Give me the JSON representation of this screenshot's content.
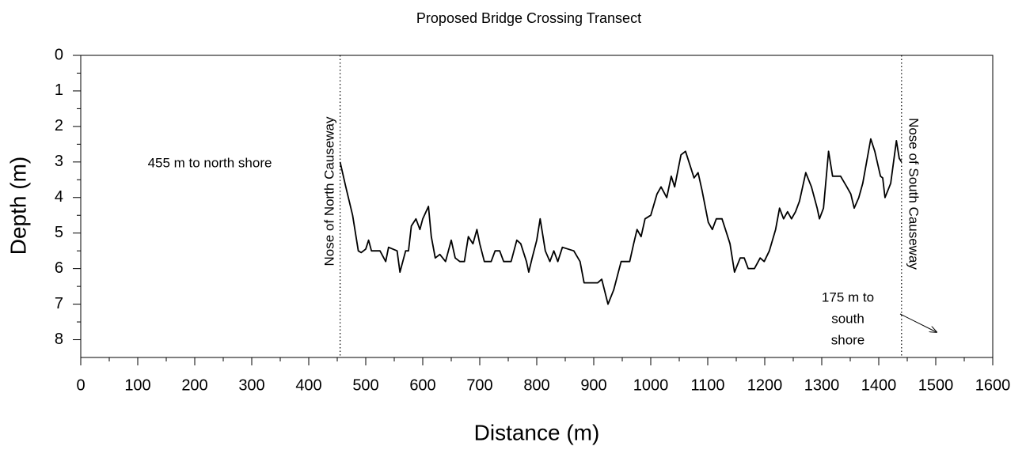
{
  "chart_data": {
    "type": "line",
    "title": "Proposed Bridge Crossing Transect",
    "xlabel": "Distance (m)",
    "ylabel": "Depth (m)",
    "xlim": [
      0,
      1600
    ],
    "ylim": [
      0,
      8.5
    ],
    "y_inverted": true,
    "xticks": [
      0,
      100,
      200,
      300,
      400,
      500,
      600,
      700,
      800,
      900,
      1000,
      1100,
      1200,
      1300,
      1400,
      1500,
      1600
    ],
    "xminorticks": [
      50,
      150,
      250,
      350,
      450,
      550,
      650,
      750,
      850,
      950,
      1050,
      1150,
      1250,
      1350,
      1450,
      1550
    ],
    "yticks": [
      0,
      1,
      2,
      3,
      4,
      5,
      6,
      7,
      8
    ],
    "yminorticks": [
      0.5,
      1.5,
      2.5,
      3.5,
      4.5,
      5.5,
      6.5,
      7.5
    ],
    "color": "#000000",
    "vlines": [
      455,
      1440
    ],
    "annotations": {
      "north_shore": "455 m to north shore",
      "north_nose": "Nose of North Causeway",
      "south_nose": "Nose of South Causeway",
      "south_shore": [
        "175 m to",
        "south",
        "shore"
      ]
    },
    "x": [
      455,
      465,
      477,
      487,
      492,
      500,
      505,
      510,
      525,
      535,
      540,
      555,
      560,
      570,
      575,
      580,
      588,
      595,
      600,
      610,
      615,
      622,
      630,
      640,
      650,
      657,
      665,
      673,
      680,
      688,
      695,
      700,
      708,
      720,
      727,
      735,
      742,
      755,
      765,
      772,
      782,
      786,
      792,
      800,
      806,
      815,
      823,
      830,
      837,
      845,
      865,
      876,
      883,
      907,
      914,
      925,
      935,
      948,
      963,
      970,
      976,
      983,
      990,
      1000,
      1011,
      1018,
      1028,
      1036,
      1042,
      1053,
      1061,
      1069,
      1076,
      1083,
      1090,
      1101,
      1108,
      1115,
      1125,
      1133,
      1139,
      1147,
      1157,
      1164,
      1171,
      1182,
      1192,
      1199,
      1208,
      1219,
      1226,
      1233,
      1240,
      1247,
      1254,
      1261,
      1272,
      1282,
      1292,
      1296,
      1303,
      1312,
      1319,
      1326,
      1333,
      1344,
      1351,
      1357,
      1365,
      1372,
      1386,
      1393,
      1403,
      1407,
      1411,
      1421,
      1431,
      1436,
      1440
    ],
    "values": [
      3.0,
      3.7,
      4.5,
      5.5,
      5.55,
      5.45,
      5.2,
      5.5,
      5.5,
      5.8,
      5.4,
      5.5,
      6.1,
      5.5,
      5.5,
      4.8,
      4.6,
      4.9,
      4.6,
      4.25,
      5.1,
      5.7,
      5.6,
      5.8,
      5.2,
      5.7,
      5.8,
      5.8,
      5.1,
      5.3,
      4.9,
      5.3,
      5.8,
      5.8,
      5.5,
      5.5,
      5.8,
      5.8,
      5.2,
      5.3,
      5.8,
      6.1,
      5.7,
      5.2,
      4.6,
      5.5,
      5.8,
      5.5,
      5.8,
      5.4,
      5.5,
      5.8,
      6.4,
      6.4,
      6.3,
      7.0,
      6.6,
      5.8,
      5.8,
      5.3,
      4.9,
      5.1,
      4.6,
      4.5,
      3.9,
      3.7,
      4.0,
      3.4,
      3.7,
      2.8,
      2.7,
      3.1,
      3.45,
      3.3,
      3.8,
      4.7,
      4.9,
      4.6,
      4.6,
      5.0,
      5.3,
      6.1,
      5.7,
      5.7,
      6.0,
      6.0,
      5.7,
      5.8,
      5.5,
      4.9,
      4.3,
      4.6,
      4.4,
      4.6,
      4.4,
      4.1,
      3.3,
      3.7,
      4.3,
      4.6,
      4.3,
      2.7,
      3.4,
      3.4,
      3.4,
      3.7,
      3.9,
      4.3,
      4.0,
      3.6,
      2.35,
      2.7,
      3.4,
      3.45,
      4.0,
      3.6,
      2.4,
      2.9,
      3.0
    ]
  }
}
